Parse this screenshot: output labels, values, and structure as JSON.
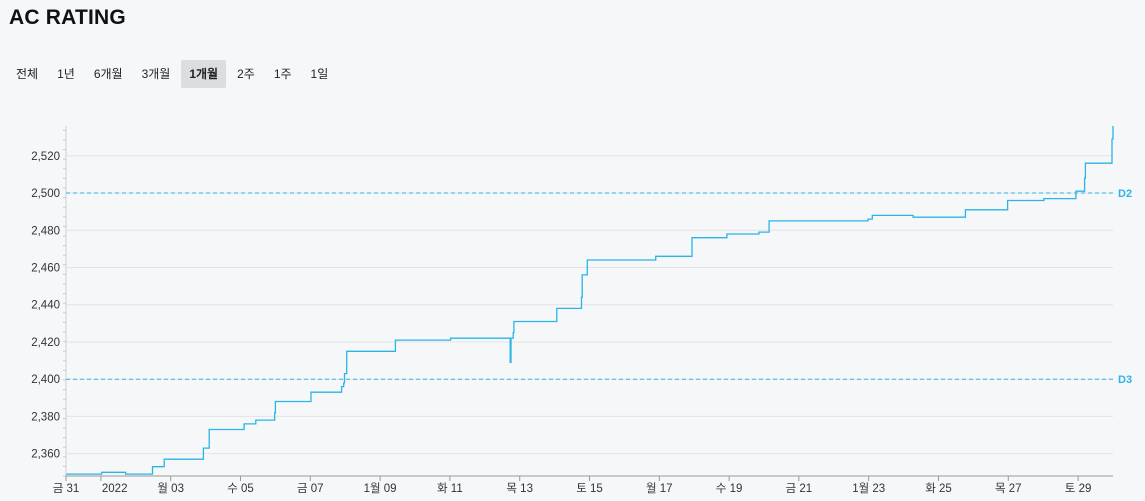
{
  "title": "AC RATING",
  "range_tabs": [
    {
      "label": "전체",
      "active": false
    },
    {
      "label": "1년",
      "active": false
    },
    {
      "label": "6개월",
      "active": false
    },
    {
      "label": "3개월",
      "active": false
    },
    {
      "label": "1개월",
      "active": true
    },
    {
      "label": "2주",
      "active": false
    },
    {
      "label": "1주",
      "active": false
    },
    {
      "label": "1일",
      "active": false
    }
  ],
  "colors": {
    "line": "#2bb4e8",
    "grid": "#e3e4e8",
    "axis": "#999999"
  },
  "chart_data": {
    "type": "line",
    "title": "",
    "xlabel": "",
    "ylabel": "",
    "step": true,
    "xlim": [
      "2021-12-31T00:00",
      "2022-01-30T00:00"
    ],
    "ylim": [
      2348,
      2536
    ],
    "yticks": [
      2360,
      2380,
      2400,
      2420,
      2440,
      2460,
      2480,
      2500,
      2520
    ],
    "ytick_labels": [
      "2,360",
      "2,380",
      "2,400",
      "2,420",
      "2,440",
      "2,460",
      "2,480",
      "2,500",
      "2,520"
    ],
    "xticks": [
      {
        "date": "2021-12-31",
        "label": "금 31"
      },
      {
        "date": "2022-01-01",
        "label": "2022"
      },
      {
        "date": "2022-01-03",
        "label": "월 03"
      },
      {
        "date": "2022-01-05",
        "label": "수 05"
      },
      {
        "date": "2022-01-07",
        "label": "금 07"
      },
      {
        "date": "2022-01-09",
        "label": "1월 09"
      },
      {
        "date": "2022-01-11",
        "label": "화 11"
      },
      {
        "date": "2022-01-13",
        "label": "목 13"
      },
      {
        "date": "2022-01-15",
        "label": "토 15"
      },
      {
        "date": "2022-01-17",
        "label": "월 17"
      },
      {
        "date": "2022-01-19",
        "label": "수 19"
      },
      {
        "date": "2022-01-21",
        "label": "금 21"
      },
      {
        "date": "2022-01-23",
        "label": "1월 23"
      },
      {
        "date": "2022-01-25",
        "label": "화 25"
      },
      {
        "date": "2022-01-27",
        "label": "목 27"
      },
      {
        "date": "2022-01-29",
        "label": "토 29"
      }
    ],
    "reference_lines": [
      {
        "value": 2500,
        "label": "D2"
      },
      {
        "value": 2400,
        "label": "D3"
      }
    ],
    "series": [
      {
        "points": [
          [
            "2021-12-31T00:00",
            2349
          ],
          [
            "2022-01-01T00:00",
            2349
          ],
          [
            "2022-01-01T00:30",
            2350
          ],
          [
            "2022-01-01T16:00",
            2350
          ],
          [
            "2022-01-01T17:00",
            2349
          ],
          [
            "2022-01-02T11:00",
            2349
          ],
          [
            "2022-01-02T11:30",
            2353
          ],
          [
            "2022-01-02T19:00",
            2353
          ],
          [
            "2022-01-02T19:30",
            2357
          ],
          [
            "2022-01-03T22:00",
            2357
          ],
          [
            "2022-01-03T22:30",
            2363
          ],
          [
            "2022-01-04T02:00",
            2363
          ],
          [
            "2022-01-04T02:30",
            2373
          ],
          [
            "2022-01-05T02:00",
            2373
          ],
          [
            "2022-01-05T02:30",
            2376
          ],
          [
            "2022-01-05T10:00",
            2376
          ],
          [
            "2022-01-05T10:30",
            2378
          ],
          [
            "2022-01-05T23:00",
            2378
          ],
          [
            "2022-01-05T23:30",
            2382
          ],
          [
            "2022-01-06T00:00",
            2388
          ],
          [
            "2022-01-07T00:00",
            2388
          ],
          [
            "2022-01-07T00:30",
            2393
          ],
          [
            "2022-01-07T21:00",
            2393
          ],
          [
            "2022-01-07T21:30",
            2396
          ],
          [
            "2022-01-07T23:00",
            2398
          ],
          [
            "2022-01-07T23:30",
            2403
          ],
          [
            "2022-01-08T01:00",
            2415
          ],
          [
            "2022-01-09T10:00",
            2415
          ],
          [
            "2022-01-09T10:30",
            2421
          ],
          [
            "2022-01-11T00:00",
            2421
          ],
          [
            "2022-01-11T00:30",
            2422
          ],
          [
            "2022-01-12T17:00",
            2422
          ],
          [
            "2022-01-12T17:30",
            2409
          ],
          [
            "2022-01-12T18:00",
            2422
          ],
          [
            "2022-01-12T19:00",
            2422
          ],
          [
            "2022-01-12T19:30",
            2425
          ],
          [
            "2022-01-12T20:00",
            2431
          ],
          [
            "2022-01-14T01:00",
            2431
          ],
          [
            "2022-01-14T01:30",
            2438
          ],
          [
            "2022-01-14T18:00",
            2438
          ],
          [
            "2022-01-14T18:30",
            2444
          ],
          [
            "2022-01-14T19:00",
            2456
          ],
          [
            "2022-01-14T22:00",
            2456
          ],
          [
            "2022-01-14T22:30",
            2464
          ],
          [
            "2022-01-16T21:00",
            2464
          ],
          [
            "2022-01-16T21:30",
            2466
          ],
          [
            "2022-01-17T22:00",
            2466
          ],
          [
            "2022-01-17T22:30",
            2476
          ],
          [
            "2022-01-18T22:00",
            2476
          ],
          [
            "2022-01-18T22:30",
            2478
          ],
          [
            "2022-01-19T20:00",
            2478
          ],
          [
            "2022-01-19T20:30",
            2479
          ],
          [
            "2022-01-20T03:00",
            2479
          ],
          [
            "2022-01-20T03:30",
            2485
          ],
          [
            "2022-01-22T23:00",
            2485
          ],
          [
            "2022-01-22T23:30",
            2486
          ],
          [
            "2022-01-23T02:00",
            2486
          ],
          [
            "2022-01-23T02:30",
            2488
          ],
          [
            "2022-01-24T06:00",
            2488
          ],
          [
            "2022-01-24T06:30",
            2487
          ],
          [
            "2022-01-25T18:00",
            2487
          ],
          [
            "2022-01-25T18:30",
            2491
          ],
          [
            "2022-01-26T23:00",
            2491
          ],
          [
            "2022-01-26T23:30",
            2496
          ],
          [
            "2022-01-28T00:00",
            2496
          ],
          [
            "2022-01-28T00:30",
            2497
          ],
          [
            "2022-01-28T22:00",
            2497
          ],
          [
            "2022-01-28T22:30",
            2501
          ],
          [
            "2022-01-29T04:00",
            2501
          ],
          [
            "2022-01-29T04:30",
            2508
          ],
          [
            "2022-01-29T05:00",
            2516
          ],
          [
            "2022-01-29T23:00",
            2516
          ],
          [
            "2022-01-29T23:20",
            2529
          ],
          [
            "2022-01-30T00:00",
            2536
          ]
        ]
      }
    ]
  }
}
